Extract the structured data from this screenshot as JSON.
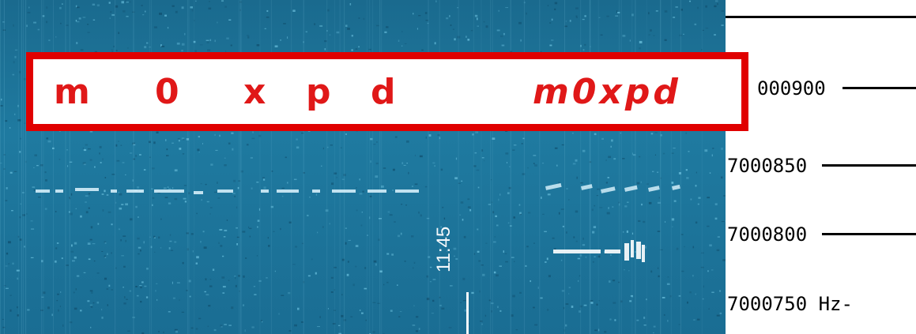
{
  "annotation": {
    "letters": [
      "m",
      "0",
      "x",
      "p",
      "d"
    ],
    "decoded": "m0xpd"
  },
  "frequency_scale": {
    "labels": [
      "000900",
      "7000850",
      "7000800",
      "7000750 Hz-"
    ]
  },
  "time_marker": "11:45",
  "colors": {
    "waterfall": "#1f7aa0",
    "annotation_red": "#e00000",
    "signal": "#dff6ff"
  }
}
